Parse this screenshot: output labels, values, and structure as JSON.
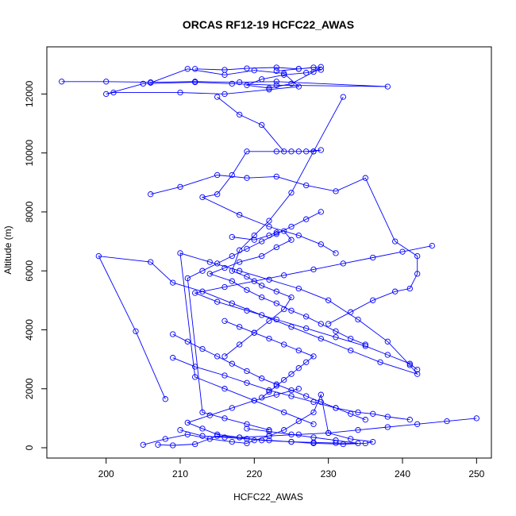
{
  "chart_data": {
    "type": "line",
    "title": "ORCAS RF12-19 HCFC22_AWAS",
    "xlabel": "HCFC22_AWAS",
    "ylabel": "Altitude (m)",
    "xlim": [
      192,
      252
    ],
    "ylim": [
      -350,
      13600
    ],
    "xticks": [
      200,
      210,
      220,
      230,
      240,
      250
    ],
    "yticks": [
      0,
      2000,
      4000,
      6000,
      8000,
      10000,
      12000
    ],
    "markers": "open-circle",
    "legend": "none",
    "grid": false,
    "colors": {
      "series": "#0000ff",
      "axes": "#000000",
      "background": "#ffffff"
    },
    "series": [
      {
        "x": [
          205,
          208,
          211,
          214,
          217,
          219,
          220,
          222,
          224,
          226,
          228,
          229,
          230,
          233,
          236,
          235,
          232,
          228,
          225,
          221,
          218,
          215,
          212,
          209,
          207
        ],
        "y": [
          100,
          300,
          450,
          300,
          200,
          150,
          250,
          400,
          600,
          900,
          1200,
          1800,
          500,
          300,
          200,
          150,
          120,
          150,
          200,
          250,
          350,
          400,
          120,
          80,
          100
        ]
      },
      {
        "x": [
          208,
          204,
          199,
          206,
          209,
          213,
          217,
          221,
          225,
          229,
          233,
          237,
          242,
          241,
          238,
          234,
          230,
          226,
          222,
          218,
          214,
          210,
          212,
          216,
          220,
          224,
          228
        ],
        "y": [
          1650,
          3950,
          6500,
          6300,
          5600,
          5300,
          4900,
          4500,
          4100,
          3700,
          3300,
          2900,
          2500,
          2800,
          3600,
          4350,
          5000,
          5400,
          5700,
          6000,
          6300,
          6600,
          2400,
          2000,
          1600,
          1200,
          800
        ]
      },
      {
        "x": [
          194,
          200,
          206,
          212,
          218,
          223,
          238,
          223,
          217,
          212,
          205,
          200,
          201,
          210,
          216,
          222,
          226,
          224,
          220,
          216,
          211,
          206
        ],
        "y": [
          12420,
          12420,
          12400,
          12420,
          12400,
          12420,
          12250,
          12300,
          12350,
          12400,
          12350,
          12000,
          12050,
          12050,
          12000,
          12150,
          12250,
          12700,
          12800,
          12650,
          12850,
          12380
        ]
      },
      {
        "x": [
          212,
          216,
          219,
          223,
          226,
          228,
          229,
          227,
          224,
          221,
          219,
          222,
          225,
          228,
          229,
          226,
          223
        ],
        "y": [
          12850,
          12820,
          12870,
          12900,
          12850,
          12900,
          12820,
          12720,
          12650,
          12500,
          12300,
          12200,
          12350,
          12750,
          12920,
          12850,
          12780
        ]
      },
      {
        "x": [
          215,
          218,
          221,
          224,
          226,
          228,
          229,
          227,
          225,
          223,
          219,
          217,
          215,
          213,
          218,
          222,
          226,
          229,
          231
        ],
        "y": [
          11900,
          11300,
          10950,
          10050,
          10050,
          10050,
          10100,
          10050,
          10050,
          10050,
          10050,
          9250,
          8600,
          8500,
          7900,
          7500,
          7200,
          6900,
          6600
        ]
      },
      {
        "x": [
          217,
          220,
          222,
          223,
          224,
          225,
          223,
          221,
          218,
          216,
          214,
          217,
          219,
          221,
          223,
          225,
          227,
          229,
          231,
          233,
          235
        ],
        "y": [
          7150,
          7050,
          7200,
          7300,
          7350,
          7050,
          6800,
          6500,
          6300,
          6100,
          5900,
          5650,
          5350,
          5100,
          4900,
          4650,
          4450,
          4200,
          3950,
          3700,
          3500
        ]
      },
      {
        "x": [
          232,
          228,
          225,
          222,
          220,
          218,
          217,
          219,
          221,
          223,
          225,
          224,
          222,
          220,
          218,
          216
        ],
        "y": [
          11900,
          10050,
          8650,
          7700,
          7200,
          6700,
          6000,
          5800,
          5500,
          5300,
          5100,
          4700,
          4300,
          3900,
          3500,
          3100
        ]
      },
      {
        "x": [
          206,
          210,
          215,
          219,
          223,
          227,
          231,
          235,
          239,
          242,
          242,
          241,
          239,
          236,
          233,
          230
        ],
        "y": [
          8600,
          8850,
          9250,
          9150,
          9200,
          8900,
          8700,
          9150,
          7000,
          6500,
          5900,
          5400,
          5300,
          5000,
          4600,
          4200
        ]
      },
      {
        "x": [
          244,
          240,
          236,
          232,
          228,
          224,
          220,
          216,
          212,
          215,
          219,
          223,
          227,
          231,
          235,
          238,
          241,
          242
        ],
        "y": [
          6850,
          6650,
          6450,
          6250,
          6050,
          5850,
          5650,
          5450,
          5250,
          4950,
          4650,
          4350,
          4050,
          3750,
          3450,
          3150,
          2850,
          2650
        ]
      },
      {
        "x": [
          209,
          212,
          216,
          219,
          222,
          225,
          228,
          231,
          234,
          236,
          238,
          241
        ],
        "y": [
          3050,
          2750,
          2450,
          2200,
          1950,
          1750,
          1550,
          1350,
          1200,
          1150,
          1050,
          950
        ]
      },
      {
        "x": [
          250,
          246,
          242,
          238,
          234,
          230,
          226,
          222,
          218,
          215,
          213,
          211,
          214,
          217,
          220,
          223,
          226
        ],
        "y": [
          1000,
          900,
          800,
          700,
          600,
          500,
          450,
          400,
          350,
          450,
          650,
          850,
          1100,
          1350,
          1600,
          1800,
          2000
        ]
      },
      {
        "x": [
          209,
          211,
          213,
          215,
          217,
          219,
          221,
          223,
          225,
          227,
          229,
          231,
          233,
          235
        ],
        "y": [
          3850,
          3600,
          3350,
          3100,
          2850,
          2600,
          2350,
          2150,
          1950,
          1750,
          1550,
          1350,
          1150,
          950
        ]
      },
      {
        "x": [
          229,
          227,
          225,
          223,
          221,
          219,
          217,
          215,
          213,
          211,
          213,
          216,
          219,
          222
        ],
        "y": [
          8000,
          7750,
          7500,
          7250,
          7000,
          6750,
          6500,
          6250,
          6000,
          5750,
          1200,
          1000,
          800,
          600
        ]
      },
      {
        "x": [
          221,
          222,
          223,
          224,
          225,
          226,
          227,
          228,
          226,
          224,
          222,
          220,
          218,
          216
        ],
        "y": [
          1700,
          1900,
          2100,
          2300,
          2500,
          2700,
          2900,
          3100,
          3300,
          3500,
          3700,
          3900,
          4100,
          4300
        ]
      },
      {
        "x": [
          210,
          213,
          216,
          219,
          222,
          225,
          228,
          231,
          234,
          231,
          228,
          225,
          222,
          219
        ],
        "y": [
          600,
          400,
          350,
          300,
          250,
          200,
          180,
          160,
          150,
          250,
          350,
          450,
          550,
          650
        ]
      }
    ]
  }
}
